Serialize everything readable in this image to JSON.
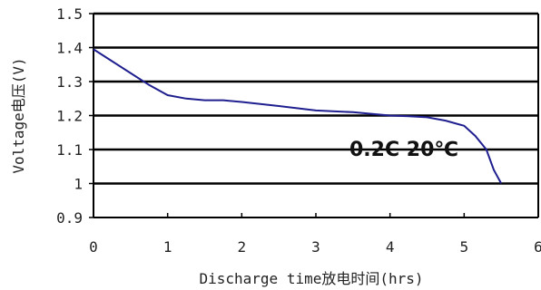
{
  "chart_data": {
    "type": "line",
    "xlabel": "Discharge time放电时间(hrs)",
    "ylabel": "Voltage电压(V)",
    "xlim": [
      0,
      6
    ],
    "ylim": [
      0.9,
      1.5
    ],
    "x_ticks": [
      "0",
      "1",
      "2",
      "3",
      "4",
      "5",
      "6"
    ],
    "y_ticks": [
      "0.9",
      "1",
      "1.1",
      "1.2",
      "1.3",
      "1.4",
      "1.5"
    ],
    "grid": "horizontal",
    "line_color": "#1f1f8f",
    "annotation": "0.2C 20℃",
    "series": [
      {
        "x": [
          0,
          0.25,
          0.5,
          0.75,
          1.0,
          1.25,
          1.5,
          1.75,
          2.0,
          2.5,
          3.0,
          3.5,
          4.0,
          4.25,
          4.5,
          4.75,
          5.0,
          5.15,
          5.3,
          5.4,
          5.5
        ],
        "y": [
          1.395,
          1.36,
          1.325,
          1.29,
          1.26,
          1.25,
          1.245,
          1.245,
          1.24,
          1.228,
          1.215,
          1.21,
          1.2,
          1.198,
          1.195,
          1.185,
          1.17,
          1.14,
          1.1,
          1.04,
          1.0
        ]
      }
    ]
  }
}
